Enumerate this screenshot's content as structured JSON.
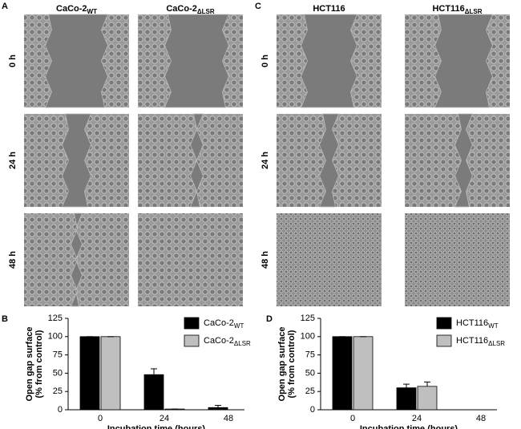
{
  "panel_labels": [
    "A",
    "B",
    "C",
    "D"
  ],
  "image_columns": [
    {
      "text": "CaCo-2",
      "sub": "WT"
    },
    {
      "text": "CaCo-2",
      "sub": "ΔLSR"
    },
    {
      "text": "HCT116"
    },
    {
      "text": "HCT116",
      "sub": "ΔLSR"
    }
  ],
  "image_rows": [
    "0 h",
    "24 h",
    "48 h"
  ],
  "chart_data": [
    {
      "type": "bar",
      "ylabel": [
        "Open gap surface",
        "(% from control)"
      ],
      "xlabel": "Incubation time (hours)",
      "categories": [
        "0",
        "24",
        "48"
      ],
      "ylim": [
        0,
        125
      ],
      "yticks": [
        0,
        25,
        50,
        75,
        100,
        125
      ],
      "legend": "upper right",
      "series": [
        {
          "name": "CaCo-2",
          "name_sub": "WT",
          "color": "#000000",
          "values": [
            100,
            48,
            3
          ],
          "errors": [
            0,
            8,
            3
          ]
        },
        {
          "name": "CaCo-2",
          "name_sub": "ΔLSR",
          "color": "#bfbfbf",
          "values": [
            100,
            1,
            0
          ],
          "errors": [
            0,
            0,
            0
          ]
        }
      ]
    },
    {
      "type": "bar",
      "ylabel": [
        "Open gap surface",
        "(% from control)"
      ],
      "xlabel": "Incubation time (hours)",
      "categories": [
        "0",
        "24",
        "48"
      ],
      "ylim": [
        0,
        125
      ],
      "yticks": [
        0,
        25,
        50,
        75,
        100,
        125
      ],
      "legend": "upper right",
      "series": [
        {
          "name": "HCT116",
          "name_sub": "WT",
          "color": "#000000",
          "values": [
            100,
            30,
            0
          ],
          "errors": [
            0,
            5,
            0
          ]
        },
        {
          "name": "HCT116",
          "name_sub": "ΔLSR",
          "color": "#bfbfbf",
          "values": [
            100,
            32,
            0
          ],
          "errors": [
            0,
            6,
            0
          ]
        }
      ]
    }
  ]
}
